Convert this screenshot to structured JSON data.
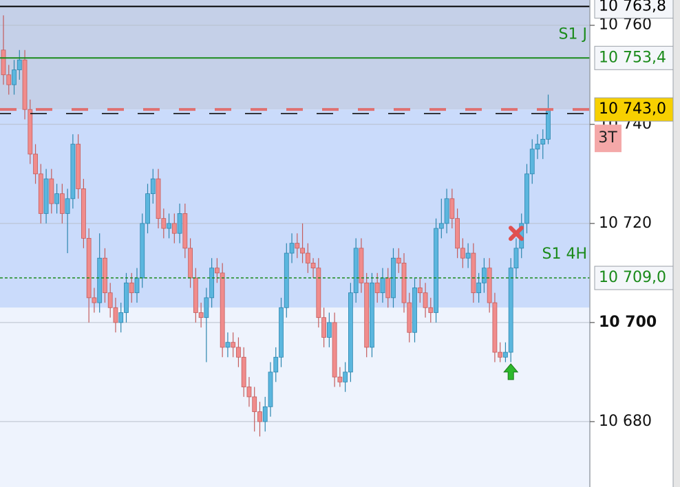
{
  "chart_data": {
    "type": "candlestick",
    "ylim": [
      10666.8,
      10765.1
    ],
    "yticks": [
      {
        "value": 10680,
        "label": "10 680"
      },
      {
        "value": 10700,
        "label": "10 700",
        "bold": true
      },
      {
        "value": 10720,
        "label": "10 720"
      },
      {
        "value": 10740,
        "label": "10 740"
      },
      {
        "value": 10760,
        "label": "10 760"
      }
    ],
    "grid": true,
    "up_color": "#5bb6de",
    "down_color": "#f08c8c",
    "open": [
      10755,
      10750,
      10748,
      10751,
      10753,
      10743,
      10734,
      10730,
      10722,
      10729,
      10724,
      10726,
      10722,
      10725,
      10736,
      10727,
      10717,
      10705,
      10704,
      10713,
      10706,
      10703,
      10700,
      10702,
      10708,
      10706,
      10709,
      10720,
      10726,
      10729,
      10721,
      10719,
      10720,
      10718,
      10722,
      10715,
      10709,
      10702,
      10701,
      10705,
      10711,
      10710,
      10695,
      10696,
      10695,
      10693,
      10687,
      10685,
      10682,
      10680,
      10683,
      10690,
      10693,
      10703,
      10714,
      10716,
      10715,
      10714,
      10712,
      10711,
      10701,
      10697,
      10700,
      10689,
      10688,
      10690,
      10706,
      10715,
      10708,
      10695,
      10708,
      10706,
      10709,
      10705,
      10713,
      10712,
      10704,
      10698,
      10707,
      10706,
      10703,
      10702,
      10719,
      10720,
      10725,
      10721,
      10715,
      10713,
      10714,
      10706,
      10708,
      10711,
      10704,
      10694,
      10693,
      10694,
      10711,
      10715,
      10720,
      10730,
      10735,
      10736,
      10737
    ],
    "high": [
      10762,
      10752,
      10753,
      10755,
      10755,
      10745,
      10736,
      10732,
      10731,
      10731,
      10728,
      10728,
      10727,
      10738,
      10738,
      10729,
      10719,
      10707,
      10718,
      10715,
      10708,
      10705,
      10704,
      10710,
      10710,
      10711,
      10722,
      10728,
      10731,
      10731,
      10723,
      10722,
      10722,
      10724,
      10724,
      10717,
      10711,
      10704,
      10707,
      10713,
      10713,
      10712,
      10698,
      10698,
      10697,
      10695,
      10689,
      10687,
      10684,
      10685,
      10692,
      10695,
      10705,
      10716,
      10718,
      10718,
      10720,
      10716,
      10713,
      10713,
      10703,
      10702,
      10702,
      10691,
      10692,
      10708,
      10717,
      10717,
      10710,
      10710,
      10710,
      10711,
      10711,
      10715,
      10715,
      10714,
      10706,
      10709,
      10709,
      10708,
      10705,
      10721,
      10725,
      10727,
      10727,
      10723,
      10717,
      10716,
      10716,
      10710,
      10713,
      10713,
      10706,
      10696,
      10696,
      10713,
      10717,
      10722,
      10732,
      10737,
      10738,
      10739,
      10746
    ],
    "low": [
      10748,
      10746,
      10746,
      10749,
      10741,
      10732,
      10728,
      10720,
      10720,
      10722,
      10722,
      10720,
      10714,
      10723,
      10725,
      10715,
      10700,
      10702,
      10702,
      10704,
      10701,
      10698,
      10698,
      10700,
      10704,
      10704,
      10707,
      10718,
      10724,
      10719,
      10717,
      10717,
      10716,
      10716,
      10713,
      10707,
      10700,
      10699,
      10692,
      10703,
      10708,
      10693,
      10693,
      10693,
      10691,
      10685,
      10683,
      10678,
      10677,
      10678,
      10681,
      10688,
      10691,
      10701,
      10712,
      10713,
      10712,
      10710,
      10709,
      10699,
      10695,
      10695,
      10687,
      10687,
      10686,
      10688,
      10704,
      10706,
      10693,
      10693,
      10704,
      10704,
      10703,
      10703,
      10710,
      10702,
      10696,
      10696,
      10704,
      10701,
      10700,
      10700,
      10717,
      10718,
      10719,
      10713,
      10711,
      10711,
      10704,
      10704,
      10706,
      10702,
      10692,
      10692,
      10692,
      10692,
      10709,
      10713,
      10718,
      10728,
      10733,
      10733,
      10736
    ],
    "close": [
      10750,
      10748,
      10751,
      10753,
      10743,
      10734,
      10730,
      10722,
      10729,
      10724,
      10726,
      10722,
      10725,
      10736,
      10727,
      10717,
      10705,
      10704,
      10713,
      10706,
      10703,
      10700,
      10702,
      10708,
      10706,
      10709,
      10720,
      10726,
      10729,
      10721,
      10719,
      10720,
      10718,
      10722,
      10715,
      10709,
      10702,
      10701,
      10705,
      10711,
      10710,
      10695,
      10696,
      10695,
      10693,
      10687,
      10685,
      10682,
      10680,
      10683,
      10690,
      10693,
      10703,
      10714,
      10716,
      10715,
      10714,
      10712,
      10711,
      10701,
      10697,
      10700,
      10689,
      10688,
      10690,
      10706,
      10715,
      10708,
      10695,
      10708,
      10706,
      10709,
      10705,
      10713,
      10712,
      10704,
      10698,
      10707,
      10706,
      10703,
      10702,
      10719,
      10720,
      10725,
      10721,
      10715,
      10713,
      10714,
      10706,
      10708,
      10711,
      10704,
      10694,
      10693,
      10694,
      10711,
      10715,
      10720,
      10730,
      10735,
      10736,
      10737,
      10743
    ],
    "bands": [
      {
        "from": 10743,
        "to": 10765.1,
        "color": "#c5d0e8"
      },
      {
        "from": 10703,
        "to": 10743,
        "color": "#cadbfb"
      },
      {
        "from": 10666.8,
        "to": 10703,
        "color": "#eef3fd"
      }
    ],
    "levels": [
      {
        "value": 10763.8,
        "label": "10 763,8",
        "color": "#000000",
        "style": "solid",
        "label_bg": "#f4f6fa",
        "label_color": "#000000"
      },
      {
        "value": 10753.4,
        "label": "10 753,4",
        "name": "S1 J",
        "color": "#1a8a1a",
        "style": "solid",
        "label_bg": "#f4f6fa",
        "label_color": "#1a8a1a"
      },
      {
        "value": 10743.0,
        "label": "10 743,0",
        "color": "#e07070",
        "style": "dashed",
        "label_bg": "#f7d000",
        "label_color": "#000000"
      },
      {
        "value": 10709.0,
        "label": "10 709,0",
        "name": "S1 4H",
        "color": "#1a8a1a",
        "style": "dotted",
        "label_bg": "#f4f6fa",
        "label_color": "#1a8a1a"
      }
    ],
    "badge": "3T",
    "markers": [
      {
        "type": "cross",
        "index": 96,
        "value": 10718,
        "color": "#e05050"
      },
      {
        "type": "arrow-up",
        "index": 95,
        "value": 10690,
        "color": "#2db82d"
      }
    ]
  }
}
